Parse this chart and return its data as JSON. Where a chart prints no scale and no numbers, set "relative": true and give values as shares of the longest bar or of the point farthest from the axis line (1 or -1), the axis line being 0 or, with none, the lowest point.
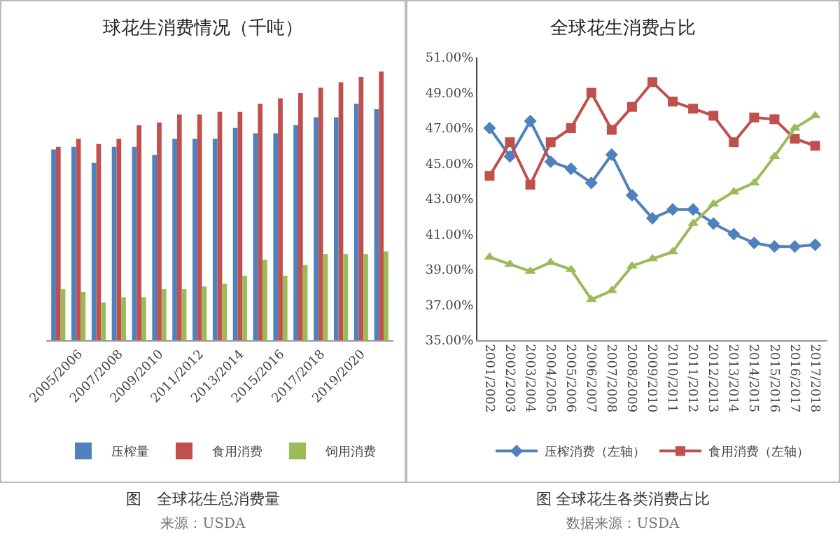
{
  "chart_data": [
    {
      "type": "bar",
      "title": "球花生消费情况（千吨）",
      "relative": true,
      "legend": "bottom",
      "annotations": [
        "图　全球花生总消费量",
        "来源：USDA"
      ],
      "categories": [
        null,
        "2005/2006",
        null,
        "2007/2008",
        null,
        "2009/2010",
        null,
        "2011/2012",
        null,
        "2013/2014",
        null,
        "2015/2016",
        null,
        "2017/2018",
        null,
        "2019/2020",
        null
      ],
      "series": [
        {
          "name": "压榨量",
          "color": "#4f81bd",
          "values": [
            0.71,
            0.72,
            0.66,
            0.72,
            0.72,
            0.69,
            0.75,
            0.75,
            0.75,
            0.79,
            0.77,
            0.77,
            0.8,
            0.83,
            0.83,
            0.88,
            0.86
          ]
        },
        {
          "name": "食用消费",
          "color": "#c0504d",
          "values": [
            0.72,
            0.75,
            0.73,
            0.75,
            0.8,
            0.81,
            0.84,
            0.84,
            0.85,
            0.85,
            0.88,
            0.9,
            0.92,
            0.94,
            0.96,
            0.98,
            1
          ]
        },
        {
          "name": "饲用消费",
          "color": "#9bbb59",
          "values": [
            0.19,
            0.18,
            0.14,
            0.16,
            0.16,
            0.19,
            0.19,
            0.2,
            0.21,
            0.24,
            0.3,
            0.24,
            0.28,
            0.32,
            0.32,
            0.32,
            0.33
          ]
        }
      ]
    },
    {
      "type": "line",
      "title": "全球花生消费占比",
      "legend": "bottom",
      "annotations": [
        "图 全球花生各类消费占比",
        "数据来源：USDA"
      ],
      "categories": [
        "2001/2002",
        "2002/2003",
        "2003/2004",
        "2004/2005",
        "2005/2006",
        "2006/2007",
        "2007/2008",
        "2008/2009",
        "2009/2010",
        "2010/2011",
        "2011/2012",
        "2012/2013",
        "2013/2014",
        "2014/2015",
        "2015/2016",
        "2016/2017",
        "2017/2018"
      ],
      "ylim": [
        35,
        51
      ],
      "yticks": [
        {
          "value": 35,
          "label": "35.00%"
        },
        {
          "value": 37,
          "label": "37.00%"
        },
        {
          "value": 39,
          "label": "39.00%"
        },
        {
          "value": 41,
          "label": "41.00%"
        },
        {
          "value": 43,
          "label": "43.00%"
        },
        {
          "value": 45,
          "label": "45.00%"
        },
        {
          "value": 47,
          "label": "47.00%"
        },
        {
          "value": 49,
          "label": "49.00%"
        },
        {
          "value": 51,
          "label": "51.00%"
        }
      ],
      "series": [
        {
          "name": "压榨消费（左轴）",
          "color": "#4f81bd",
          "marker": "diamond",
          "values": [
            47.0,
            45.4,
            47.4,
            45.1,
            44.7,
            43.9,
            45.5,
            43.2,
            41.9,
            42.4,
            42.4,
            41.6,
            41.0,
            40.5,
            40.3,
            40.3,
            40.4
          ]
        },
        {
          "name": "食用消费（左轴）",
          "color": "#c0504d",
          "marker": "square",
          "values": [
            44.3,
            46.2,
            43.8,
            46.2,
            47.0,
            49.0,
            46.9,
            48.2,
            49.6,
            48.5,
            48.1,
            47.7,
            46.2,
            47.6,
            47.5,
            46.4,
            46.0
          ]
        },
        {
          "color": "#9bbb59",
          "marker": "triangle",
          "values": [
            39.7,
            39.3,
            38.9,
            39.4,
            39.0,
            37.3,
            37.8,
            39.2,
            39.6,
            40.0,
            41.6,
            42.7,
            43.4,
            43.9,
            45.4,
            47.0,
            47.7
          ]
        }
      ]
    }
  ]
}
